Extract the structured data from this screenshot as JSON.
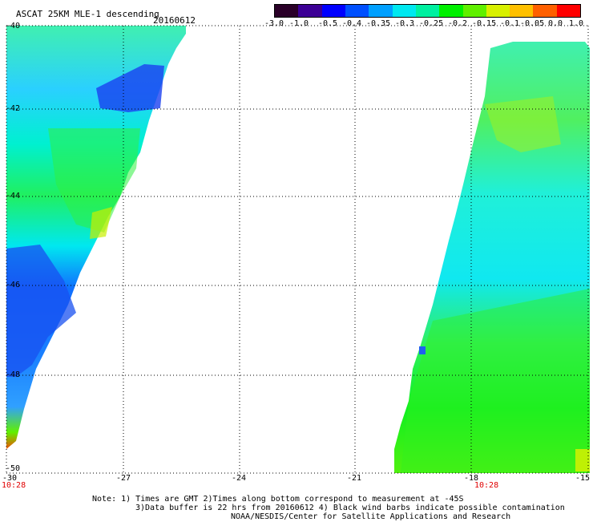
{
  "header": {
    "product": "ASCAT 25KM MLE-1 descending",
    "date": "20160612"
  },
  "colorbar": {
    "labels": [
      "-3.0",
      "-1.0",
      "-0.5",
      "-0.4",
      "-0.35",
      "-0.3",
      "-0.25",
      "-0.2",
      "-0.15",
      "-0.1",
      "-0.05",
      "0.0",
      "1.0"
    ],
    "colors": [
      "#2a0028",
      "#3c0095",
      "#0000ff",
      "#0050ff",
      "#00a0ff",
      "#00e8f0",
      "#00f0a0",
      "#00f000",
      "#60f000",
      "#d8f000",
      "#ffc000",
      "#ff6000",
      "#ff0000"
    ]
  },
  "map": {
    "lat_labels": [
      "-40",
      "-42",
      "-44",
      "-46",
      "-48",
      "-50"
    ],
    "lon_labels": [
      "-30",
      "-27",
      "-24",
      "-21",
      "-18",
      "-15"
    ],
    "time_labels": [
      "10:28",
      "10:28"
    ]
  },
  "note": {
    "line1": "Note: 1) Times are GMT 2)Times along bottom correspond to measurement at -45S",
    "line2": "3)Data buffer is 22 hrs from 20160612 4) Black wind barbs indicate possible contamination",
    "line3": "NOAA/NESDIS/Center for Satellite Applications and Research"
  }
}
